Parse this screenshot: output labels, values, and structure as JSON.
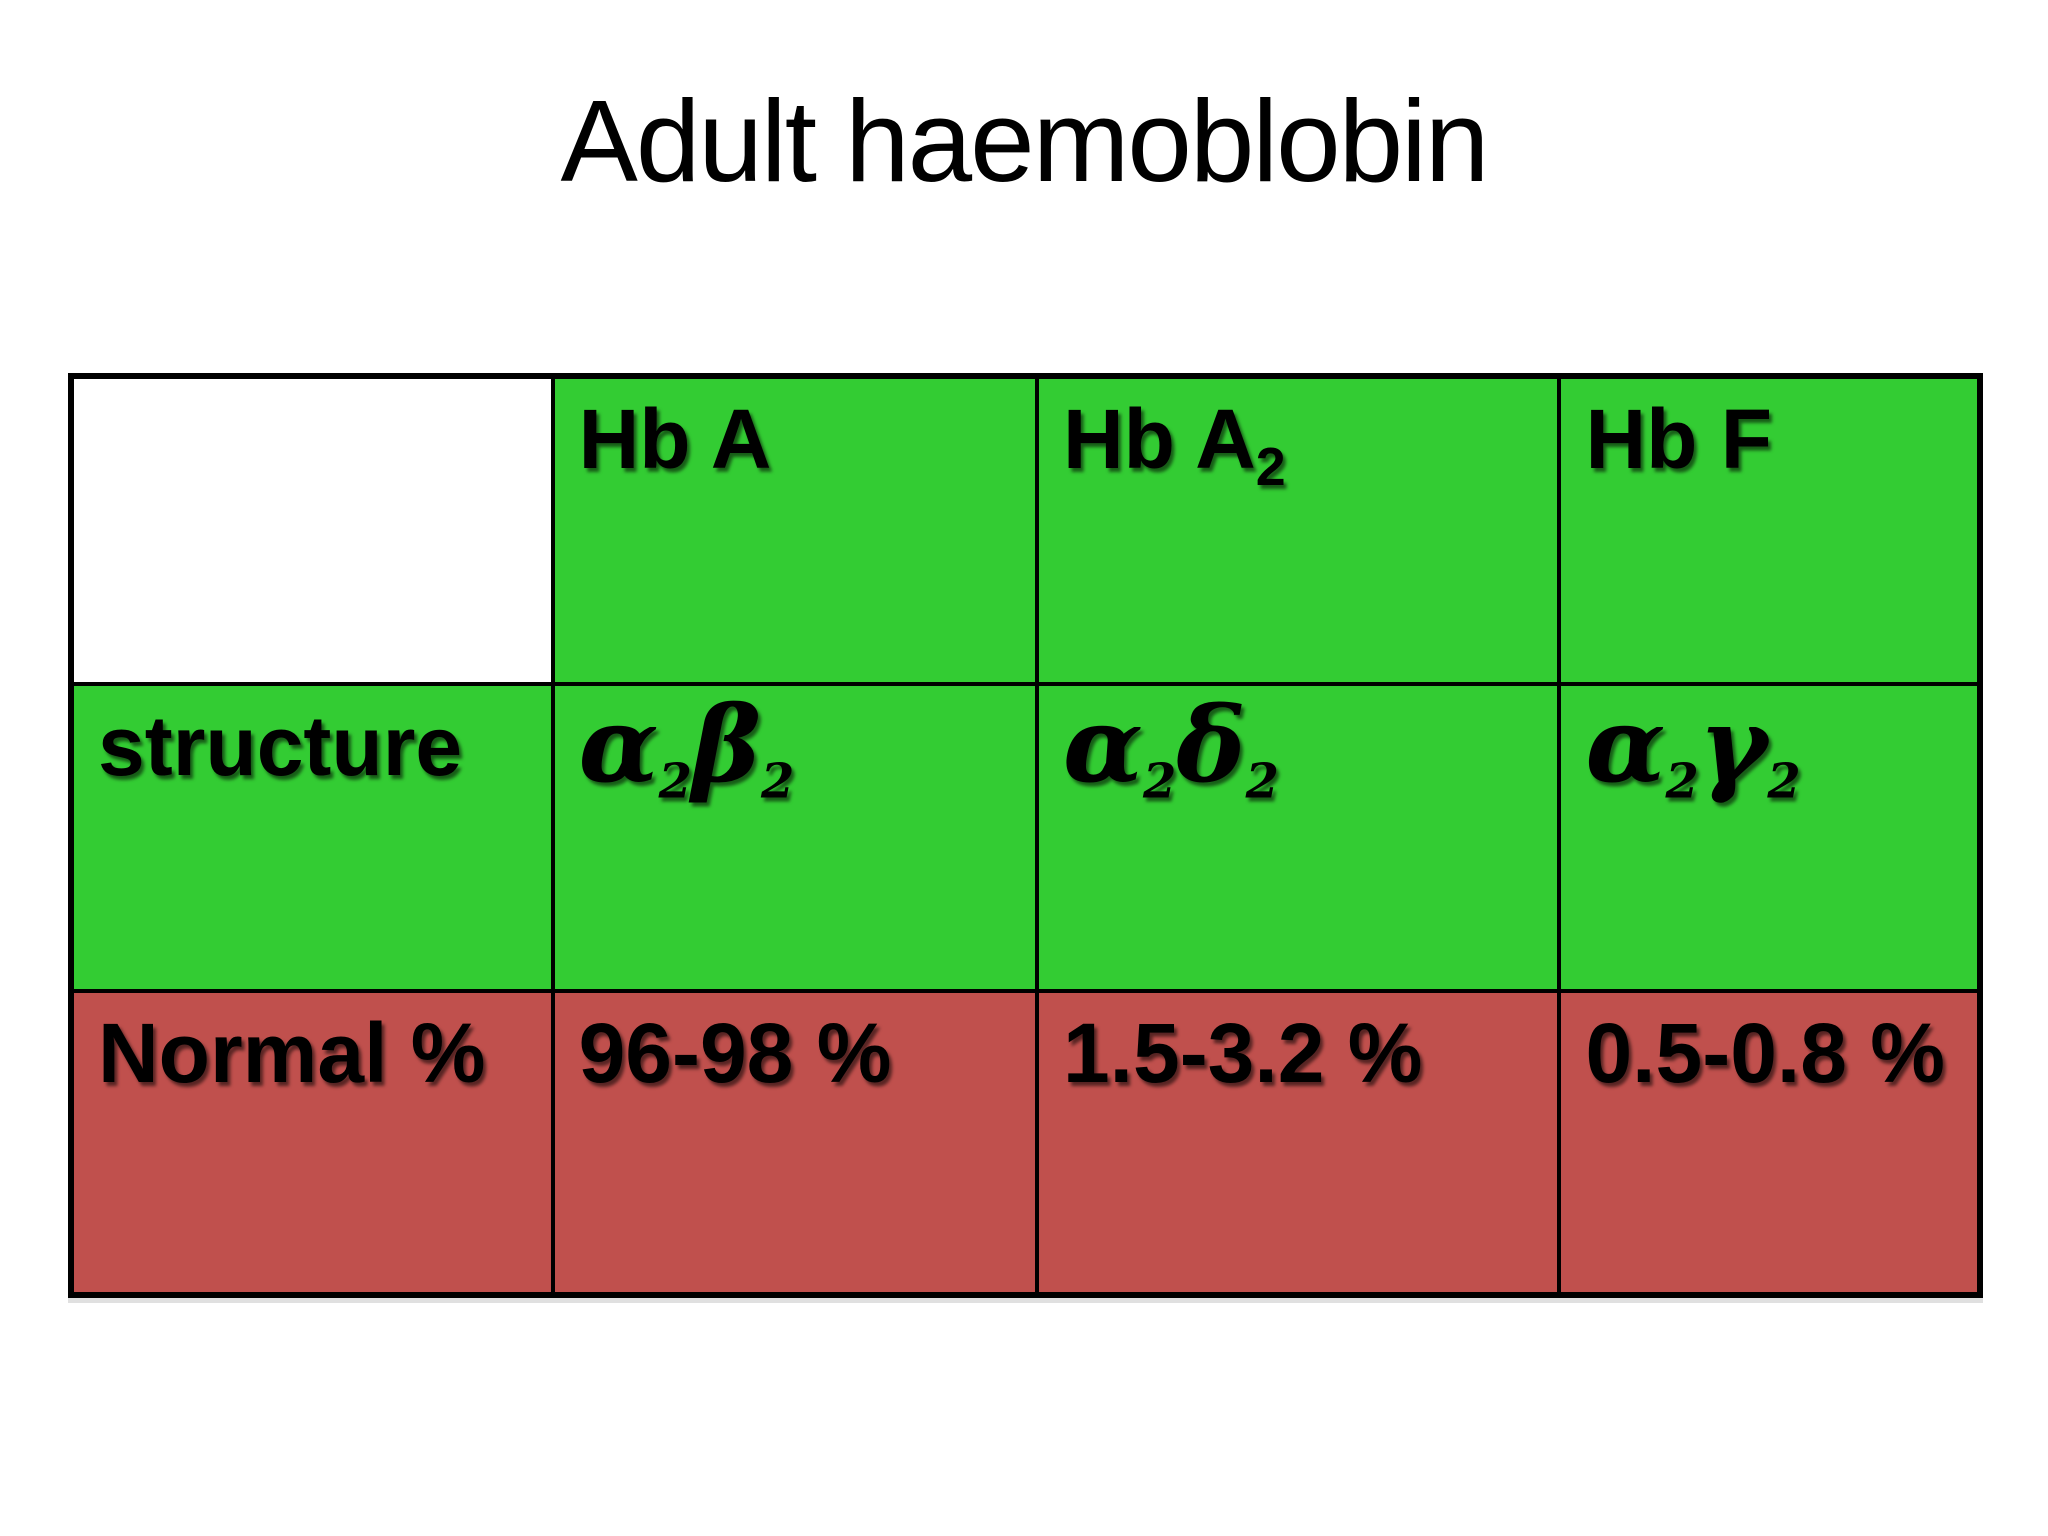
{
  "title": "Adult haemoblobin",
  "colors": {
    "header_and_structure_cells": "#33CC33",
    "normal_percent_cells": "#C0504D",
    "empty_cell": "#FFFFFF",
    "border": "#000000",
    "text": "#000000",
    "background": "#FFFFFF"
  },
  "table": {
    "header": [
      {
        "base": "Hb A",
        "sub": ""
      },
      {
        "base": "Hb A",
        "sub": "2"
      },
      {
        "base": "Hb F",
        "sub": ""
      }
    ],
    "structure": {
      "label": "structure",
      "cells": [
        {
          "g1": "α",
          "s1": "2",
          "g2": "β",
          "s2": "2"
        },
        {
          "g1": "α",
          "s1": "2",
          "g2": "δ",
          "s2": "2"
        },
        {
          "g1": "α",
          "s1": "2",
          "g2": "γ",
          "s2": "2"
        }
      ]
    },
    "normal": {
      "label": "Normal %",
      "values": [
        "96-98 %",
        "1.5-3.2 %",
        "0.5-0.8 %"
      ]
    }
  },
  "chart_data": {
    "type": "table",
    "title": "Adult haemoblobin",
    "columns": [
      "",
      "Hb A",
      "Hb A2",
      "Hb F"
    ],
    "rows": [
      [
        "structure",
        "α2β2",
        "α2δ2",
        "α2γ2"
      ],
      [
        "Normal %",
        "96-98 %",
        "1.5-3.2 %",
        "0.5-0.8 %"
      ]
    ]
  }
}
